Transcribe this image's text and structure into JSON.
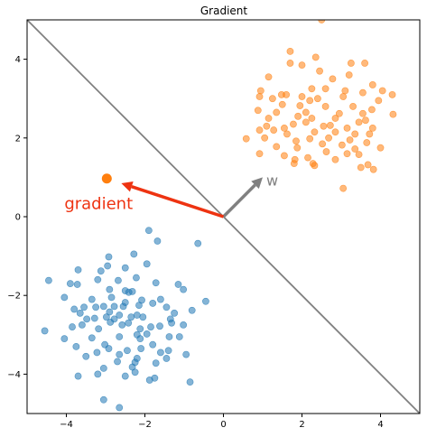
{
  "chart_data": {
    "type": "scatter",
    "title": "Gradient",
    "xlabel": "",
    "ylabel": "",
    "xlim": [
      -5,
      5
    ],
    "ylim": [
      -5,
      5
    ],
    "xticks": [
      -4,
      -2,
      0,
      2,
      4
    ],
    "yticks": [
      -4,
      -2,
      0,
      2,
      4
    ],
    "grid": false,
    "colors": {
      "blue": "#1f77b4",
      "orange": "#ff7f0e",
      "line": "#808080",
      "gradient": "#ee3311"
    },
    "decision_line": {
      "x": [
        -5,
        5
      ],
      "y": [
        5,
        -5
      ]
    },
    "w_arrow": {
      "from": [
        0,
        0
      ],
      "to": [
        1,
        1
      ],
      "label": "w"
    },
    "gradient_arrow": {
      "from": [
        0,
        0
      ],
      "to": [
        -2.6,
        0.85
      ],
      "label": "gradient"
    },
    "gradient_marker": {
      "x": -2.97,
      "y": 0.97
    },
    "series": [
      {
        "color": "#1f77b4",
        "points": [
          [
            -1.9,
            -0.35
          ],
          [
            -1.68,
            -0.62
          ],
          [
            -0.65,
            -0.68
          ],
          [
            -2.28,
            -0.95
          ],
          [
            -2.92,
            -1.02
          ],
          [
            -1.95,
            -1.2
          ],
          [
            -2.5,
            -1.3
          ],
          [
            -2.95,
            -1.25
          ],
          [
            -3.12,
            -1.38
          ],
          [
            -3.7,
            -1.35
          ],
          [
            -2.22,
            -1.55
          ],
          [
            -4.45,
            -1.62
          ],
          [
            -3.2,
            -1.6
          ],
          [
            -2.68,
            -1.62
          ],
          [
            -3.72,
            -1.72
          ],
          [
            -1.15,
            -1.72
          ],
          [
            -3.9,
            -1.7
          ],
          [
            -1.72,
            -1.68
          ],
          [
            -2.9,
            -1.85
          ],
          [
            -2.32,
            -1.9
          ],
          [
            -2.5,
            -1.88
          ],
          [
            -1.02,
            -1.85
          ],
          [
            -2.41,
            -1.92
          ],
          [
            -2.85,
            -2.05
          ],
          [
            -3.35,
            -2.1
          ],
          [
            -1.6,
            -2.1
          ],
          [
            -2.08,
            -2.12
          ],
          [
            -4.05,
            -2.05
          ],
          [
            -2.15,
            -2.25
          ],
          [
            -3.25,
            -2.3
          ],
          [
            -1.8,
            -2.2
          ],
          [
            -2.55,
            -2.28
          ],
          [
            -1.45,
            -2.3
          ],
          [
            -3.05,
            -2.28
          ],
          [
            -3.8,
            -2.35
          ],
          [
            -3.55,
            -2.3
          ],
          [
            -2.9,
            -2.42
          ],
          [
            -2.35,
            -2.55
          ],
          [
            -3.65,
            -2.45
          ],
          [
            -2.65,
            -2.5
          ],
          [
            -0.45,
            -2.15
          ],
          [
            -2.78,
            -2.6
          ],
          [
            -2.2,
            -2.5
          ],
          [
            -1.25,
            -2.45
          ],
          [
            -0.8,
            -2.38
          ],
          [
            -3.48,
            -2.6
          ],
          [
            -2.98,
            -2.55
          ],
          [
            -2.42,
            -2.7
          ],
          [
            -1.35,
            -2.6
          ],
          [
            -3.28,
            -2.58
          ],
          [
            -2.58,
            -2.75
          ],
          [
            -2.88,
            -2.68
          ],
          [
            -1.32,
            -2.7
          ],
          [
            -1.02,
            -2.75
          ],
          [
            -3.85,
            -2.8
          ],
          [
            -3.18,
            -2.85
          ],
          [
            -2.12,
            -2.85
          ],
          [
            -1.85,
            -2.8
          ],
          [
            -3.6,
            -2.75
          ],
          [
            -1.62,
            -2.78
          ],
          [
            -1.95,
            -2.98
          ],
          [
            -4.55,
            -2.9
          ],
          [
            -2.2,
            -3.0
          ],
          [
            -3.35,
            -3.08
          ],
          [
            -2.65,
            -3.05
          ],
          [
            -1.38,
            -3.05
          ],
          [
            -2.12,
            -3.1
          ],
          [
            -1.12,
            -3.05
          ],
          [
            -4.05,
            -3.1
          ],
          [
            -3.02,
            -3.25
          ],
          [
            -1.8,
            -3.25
          ],
          [
            -3.75,
            -3.3
          ],
          [
            -2.1,
            -3.35
          ],
          [
            -2.92,
            -3.35
          ],
          [
            -1.4,
            -3.4
          ],
          [
            -3.22,
            -3.45
          ],
          [
            -2.45,
            -3.4
          ],
          [
            -1.6,
            -3.45
          ],
          [
            -0.95,
            -3.5
          ],
          [
            -2.65,
            -3.5
          ],
          [
            -3.5,
            -3.55
          ],
          [
            -2.2,
            -3.6
          ],
          [
            -1.45,
            -3.6
          ],
          [
            -2.7,
            -3.68
          ],
          [
            -1.72,
            -3.72
          ],
          [
            -2.25,
            -3.7
          ],
          [
            -2.32,
            -3.82
          ],
          [
            -3.05,
            -3.85
          ],
          [
            -2.25,
            -3.95
          ],
          [
            -3.7,
            -4.05
          ],
          [
            -2.5,
            -4.05
          ],
          [
            -3.2,
            -4.0
          ],
          [
            -1.75,
            -4.1
          ],
          [
            -0.85,
            -4.2
          ],
          [
            -3.05,
            -4.65
          ],
          [
            -2.65,
            -4.85
          ],
          [
            -1.88,
            -4.15
          ],
          [
            -2.05,
            -2.55
          ],
          [
            -2.78,
            -2.28
          ],
          [
            -2.5,
            -2.18
          ]
        ]
      },
      {
        "color": "#ff7f0e",
        "points": [
          [
            2.5,
            5.0
          ],
          [
            1.7,
            4.2
          ],
          [
            2.35,
            4.05
          ],
          [
            2.0,
            3.85
          ],
          [
            1.7,
            3.9
          ],
          [
            3.25,
            3.9
          ],
          [
            3.6,
            3.9
          ],
          [
            2.45,
            3.7
          ],
          [
            1.15,
            3.55
          ],
          [
            3.2,
            3.6
          ],
          [
            3.8,
            3.35
          ],
          [
            2.78,
            3.5
          ],
          [
            4.05,
            3.2
          ],
          [
            2.25,
            3.25
          ],
          [
            2.6,
            3.25
          ],
          [
            0.95,
            3.2
          ],
          [
            3.55,
            3.15
          ],
          [
            1.25,
            3.0
          ],
          [
            1.6,
            3.1
          ],
          [
            2.4,
            3.0
          ],
          [
            3.05,
            3.05
          ],
          [
            4.3,
            3.1
          ],
          [
            0.92,
            3.05
          ],
          [
            2.0,
            3.05
          ],
          [
            1.48,
            3.1
          ],
          [
            3.95,
            2.95
          ],
          [
            2.2,
            2.95
          ],
          [
            1.5,
            2.85
          ],
          [
            0.88,
            2.7
          ],
          [
            3.3,
            2.8
          ],
          [
            2.6,
            2.8
          ],
          [
            3.78,
            2.72
          ],
          [
            1.35,
            2.65
          ],
          [
            2.1,
            2.65
          ],
          [
            3.55,
            2.62
          ],
          [
            4.32,
            2.6
          ],
          [
            1.9,
            2.55
          ],
          [
            2.25,
            2.5
          ],
          [
            3.62,
            2.45
          ],
          [
            1.15,
            2.5
          ],
          [
            2.85,
            2.5
          ],
          [
            3.45,
            2.4
          ],
          [
            1.78,
            2.35
          ],
          [
            2.1,
            2.4
          ],
          [
            2.55,
            2.3
          ],
          [
            3.15,
            2.25
          ],
          [
            1.55,
            2.25
          ],
          [
            3.8,
            2.25
          ],
          [
            0.92,
            2.2
          ],
          [
            2.85,
            2.15
          ],
          [
            1.28,
            2.2
          ],
          [
            2.32,
            2.15
          ],
          [
            3.35,
            2.1
          ],
          [
            1.05,
            2.0
          ],
          [
            3.72,
            2.1
          ],
          [
            1.62,
            2.1
          ],
          [
            2.68,
            2.0
          ],
          [
            2.2,
            1.98
          ],
          [
            3.22,
            1.95
          ],
          [
            0.58,
            1.98
          ],
          [
            1.85,
            1.92
          ],
          [
            3.65,
            1.88
          ],
          [
            2.52,
            1.85
          ],
          [
            3.02,
            1.82
          ],
          [
            1.35,
            1.78
          ],
          [
            4.0,
            1.75
          ],
          [
            1.88,
            1.75
          ],
          [
            3.35,
            1.72
          ],
          [
            2.62,
            1.65
          ],
          [
            3.15,
            1.6
          ],
          [
            0.92,
            1.6
          ],
          [
            1.55,
            1.55
          ],
          [
            2.15,
            1.5
          ],
          [
            3.45,
            1.58
          ],
          [
            1.82,
            1.45
          ],
          [
            2.85,
            1.45
          ],
          [
            2.28,
            1.35
          ],
          [
            3.68,
            1.32
          ],
          [
            1.8,
            1.35
          ],
          [
            3.82,
            1.2
          ],
          [
            3.5,
            1.25
          ],
          [
            2.32,
            1.3
          ],
          [
            3.05,
            0.72
          ],
          [
            2.72,
            2.32
          ],
          [
            1.95,
            2.82
          ],
          [
            2.95,
            2.62
          ],
          [
            3.1,
            3.2
          ],
          [
            1.1,
            2.3
          ]
        ]
      }
    ]
  }
}
